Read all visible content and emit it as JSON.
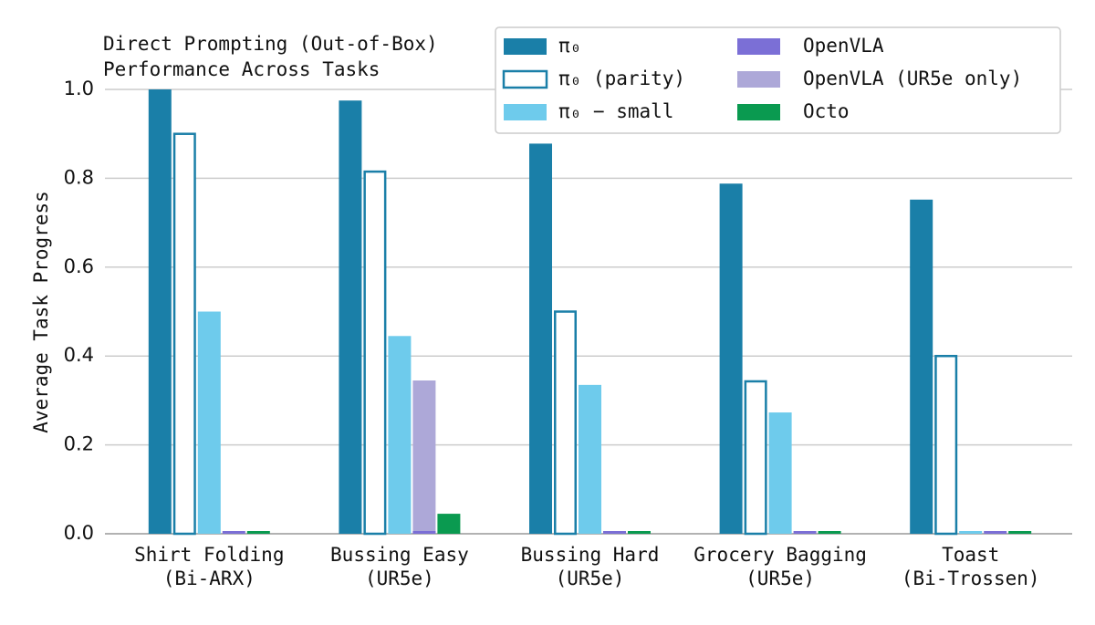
{
  "chart_data": {
    "type": "bar",
    "title": [
      "Direct Prompting (Out-of-Box)",
      "Performance Across Tasks"
    ],
    "y_label": "Average Task Progress",
    "categories": [
      [
        "Shirt Folding",
        "(Bi-ARX)"
      ],
      [
        "Bussing Easy",
        "(UR5e)"
      ],
      [
        "Bussing Hard",
        "(UR5e)"
      ],
      [
        "Grocery Bagging",
        "(UR5e)"
      ],
      [
        "Toast",
        "(Bi-Trossen)"
      ]
    ],
    "series": [
      {
        "name": "π₀",
        "color": "#1a7fa8",
        "values": [
          1.0,
          0.975,
          0.878,
          0.788,
          0.752
        ]
      },
      {
        "name": "π₀ (parity)",
        "color": "#1a7fa8",
        "outline": true,
        "values": [
          0.9,
          0.815,
          0.5,
          0.343,
          0.4
        ]
      },
      {
        "name": "π₀ − small",
        "color": "#6ecbec",
        "values": [
          0.5,
          0.445,
          0.335,
          0.273,
          0
        ]
      },
      {
        "name": "OpenVLA",
        "color": "#7b6fd6",
        "values": [
          0,
          0,
          0,
          0,
          0
        ]
      },
      {
        "name": "OpenVLA (UR5e only)",
        "color": "#ada8d8",
        "values": [
          null,
          0.345,
          null,
          null,
          null
        ]
      },
      {
        "name": "Octo",
        "color": "#0a9a50",
        "values": [
          0,
          0.045,
          0,
          0,
          0
        ]
      }
    ],
    "ylim": [
      0,
      1.0
    ],
    "yticks": [
      {
        "value": 0,
        "label": "0.0"
      },
      {
        "value": 0.2,
        "label": "0.2"
      },
      {
        "value": 0.4,
        "label": "0.4"
      },
      {
        "value": 0.6,
        "label": "0.6"
      },
      {
        "value": 0.8,
        "label": "0.8"
      },
      {
        "value": 1.0,
        "label": "1.0"
      }
    ],
    "grid": true,
    "legend": "upper right"
  }
}
